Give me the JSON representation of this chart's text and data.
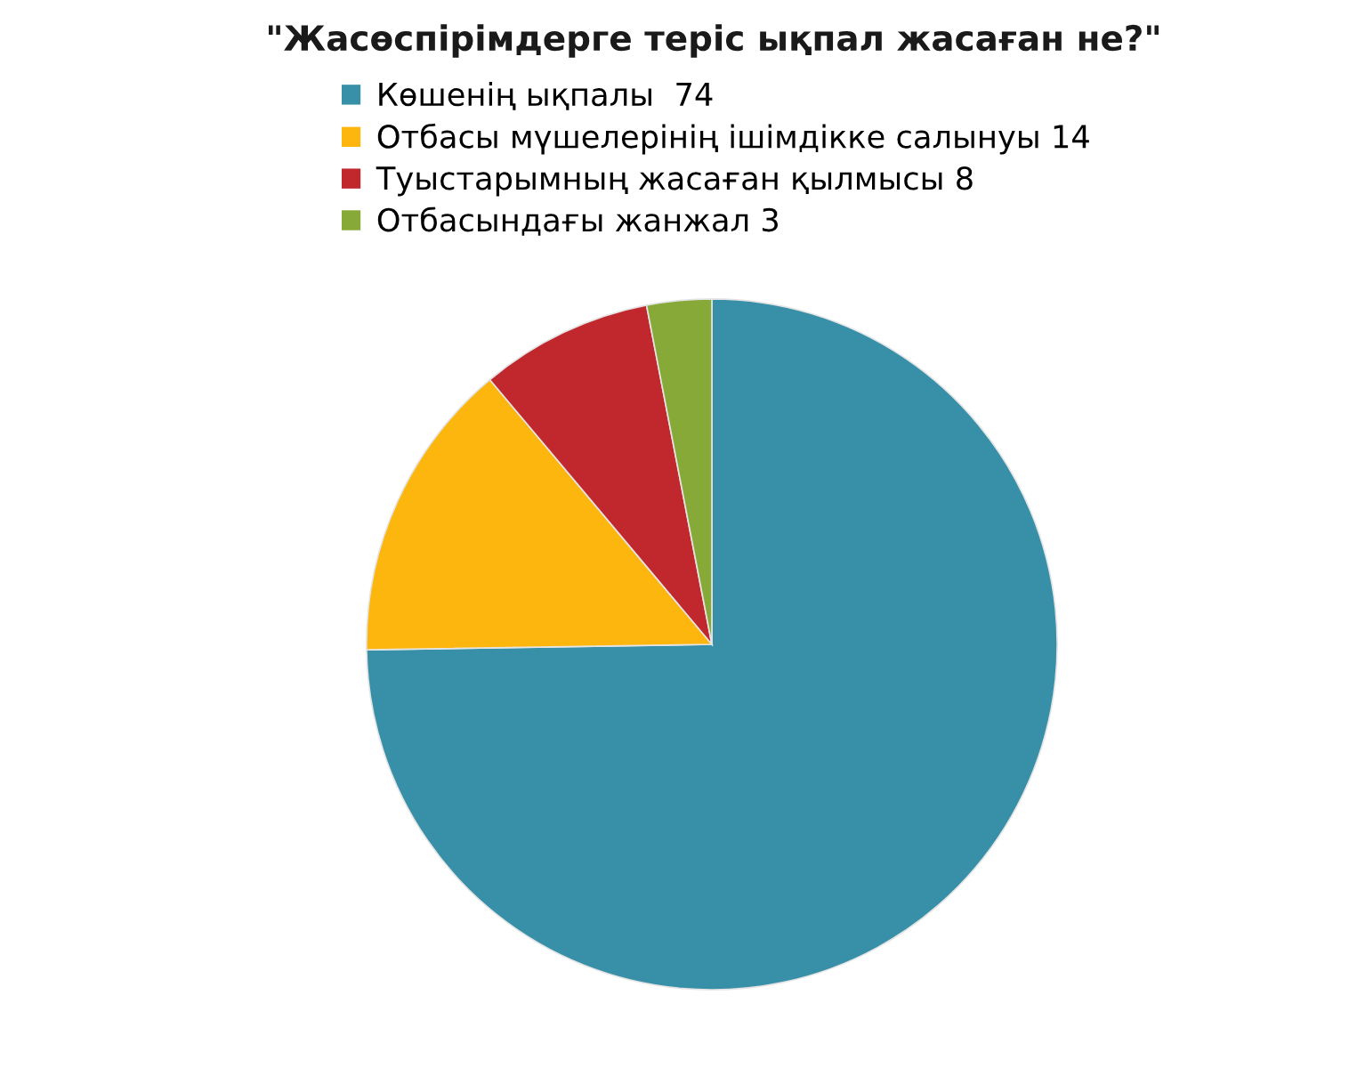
{
  "chart_data": {
    "type": "pie",
    "title": "\"Жасөспірімдерге теріс ықпал жасаған не?\"",
    "categories": [
      "Көшенің ықпалы  74",
      "Отбасы мүшелерінің ішімдікке салынуы 14",
      "Туыстарымның жасаған қылмысы 8",
      "Отбасындағы жанжал 3"
    ],
    "values": [
      74,
      14,
      8,
      3
    ],
    "colors": [
      "#3890a8",
      "#fdb60d",
      "#c0282e",
      "#86a938"
    ],
    "legend": "top"
  }
}
